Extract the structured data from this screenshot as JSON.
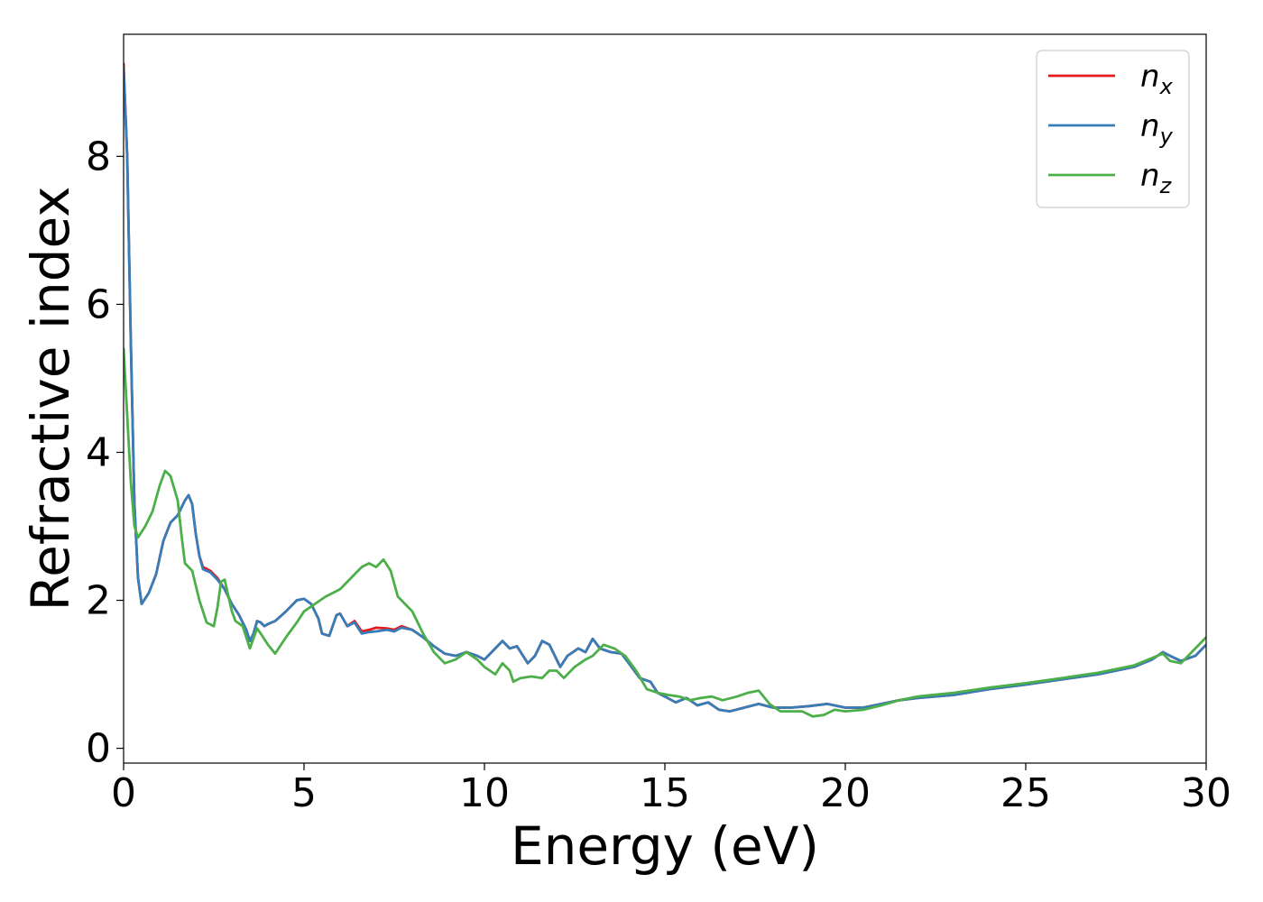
{
  "chart_data": {
    "type": "line",
    "title": "",
    "xlabel": "Energy (eV)",
    "ylabel": "Refractive index",
    "xlim": [
      0,
      30
    ],
    "ylim": [
      -0.2,
      9.65
    ],
    "xticks": [
      0,
      5,
      10,
      15,
      20,
      25,
      30
    ],
    "yticks": [
      0,
      2,
      4,
      6,
      8
    ],
    "grid": false,
    "legend_position": "top-right",
    "series": [
      {
        "name": "n",
        "subscript": "x",
        "color": "#e41a1c",
        "points": [
          [
            0,
            9.25
          ],
          [
            0.1,
            8.0
          ],
          [
            0.2,
            5.5
          ],
          [
            0.3,
            3.3
          ],
          [
            0.4,
            2.3
          ],
          [
            0.5,
            1.95
          ],
          [
            0.7,
            2.1
          ],
          [
            0.9,
            2.35
          ],
          [
            1.1,
            2.8
          ],
          [
            1.3,
            3.05
          ],
          [
            1.5,
            3.15
          ],
          [
            1.7,
            3.35
          ],
          [
            1.8,
            3.42
          ],
          [
            1.9,
            3.3
          ],
          [
            2.0,
            2.9
          ],
          [
            2.1,
            2.6
          ],
          [
            2.2,
            2.45
          ],
          [
            2.4,
            2.4
          ],
          [
            2.6,
            2.3
          ],
          [
            2.8,
            2.15
          ],
          [
            3.0,
            1.95
          ],
          [
            3.2,
            1.8
          ],
          [
            3.4,
            1.6
          ],
          [
            3.5,
            1.45
          ],
          [
            3.6,
            1.55
          ],
          [
            3.7,
            1.72
          ],
          [
            3.8,
            1.7
          ],
          [
            3.9,
            1.65
          ],
          [
            4.0,
            1.68
          ],
          [
            4.2,
            1.72
          ],
          [
            4.5,
            1.85
          ],
          [
            4.8,
            2.0
          ],
          [
            5.0,
            2.02
          ],
          [
            5.2,
            1.95
          ],
          [
            5.4,
            1.75
          ],
          [
            5.5,
            1.55
          ],
          [
            5.7,
            1.52
          ],
          [
            5.9,
            1.8
          ],
          [
            6.0,
            1.82
          ],
          [
            6.2,
            1.65
          ],
          [
            6.4,
            1.72
          ],
          [
            6.6,
            1.58
          ],
          [
            6.8,
            1.6
          ],
          [
            7.0,
            1.63
          ],
          [
            7.3,
            1.62
          ],
          [
            7.5,
            1.6
          ],
          [
            7.7,
            1.65
          ],
          [
            8.0,
            1.6
          ],
          [
            8.3,
            1.5
          ],
          [
            8.6,
            1.38
          ],
          [
            8.9,
            1.28
          ],
          [
            9.2,
            1.25
          ],
          [
            9.5,
            1.3
          ],
          [
            9.8,
            1.25
          ],
          [
            10.0,
            1.2
          ],
          [
            10.2,
            1.3
          ],
          [
            10.5,
            1.45
          ],
          [
            10.7,
            1.35
          ],
          [
            10.9,
            1.38
          ],
          [
            11.2,
            1.15
          ],
          [
            11.4,
            1.25
          ],
          [
            11.6,
            1.45
          ],
          [
            11.8,
            1.4
          ],
          [
            12.1,
            1.1
          ],
          [
            12.3,
            1.25
          ],
          [
            12.6,
            1.35
          ],
          [
            12.8,
            1.3
          ],
          [
            13.0,
            1.48
          ],
          [
            13.2,
            1.35
          ],
          [
            13.5,
            1.3
          ],
          [
            13.8,
            1.28
          ],
          [
            14.0,
            1.15
          ],
          [
            14.3,
            0.95
          ],
          [
            14.6,
            0.9
          ],
          [
            14.8,
            0.75
          ],
          [
            15.0,
            0.7
          ],
          [
            15.3,
            0.62
          ],
          [
            15.6,
            0.68
          ],
          [
            15.9,
            0.58
          ],
          [
            16.2,
            0.62
          ],
          [
            16.5,
            0.52
          ],
          [
            16.8,
            0.5
          ],
          [
            17.2,
            0.55
          ],
          [
            17.6,
            0.6
          ],
          [
            18.0,
            0.55
          ],
          [
            18.5,
            0.55
          ],
          [
            19.0,
            0.57
          ],
          [
            19.5,
            0.6
          ],
          [
            20.0,
            0.55
          ],
          [
            20.5,
            0.55
          ],
          [
            21.0,
            0.6
          ],
          [
            21.5,
            0.65
          ],
          [
            22.0,
            0.68
          ],
          [
            23.0,
            0.72
          ],
          [
            24.0,
            0.8
          ],
          [
            25.0,
            0.86
          ],
          [
            26.0,
            0.93
          ],
          [
            27.0,
            1.0
          ],
          [
            28.0,
            1.1
          ],
          [
            28.5,
            1.2
          ],
          [
            28.8,
            1.3
          ],
          [
            29.0,
            1.25
          ],
          [
            29.3,
            1.18
          ],
          [
            29.7,
            1.25
          ],
          [
            30.0,
            1.4
          ]
        ]
      },
      {
        "name": "n",
        "subscript": "y",
        "color": "#377eb8",
        "points": [
          [
            0,
            9.2
          ],
          [
            0.1,
            8.0
          ],
          [
            0.2,
            5.5
          ],
          [
            0.3,
            3.3
          ],
          [
            0.4,
            2.3
          ],
          [
            0.5,
            1.95
          ],
          [
            0.7,
            2.1
          ],
          [
            0.9,
            2.35
          ],
          [
            1.1,
            2.8
          ],
          [
            1.3,
            3.05
          ],
          [
            1.5,
            3.15
          ],
          [
            1.7,
            3.35
          ],
          [
            1.8,
            3.42
          ],
          [
            1.9,
            3.3
          ],
          [
            2.0,
            2.9
          ],
          [
            2.1,
            2.6
          ],
          [
            2.2,
            2.42
          ],
          [
            2.4,
            2.38
          ],
          [
            2.6,
            2.28
          ],
          [
            2.8,
            2.15
          ],
          [
            3.0,
            1.95
          ],
          [
            3.2,
            1.8
          ],
          [
            3.4,
            1.6
          ],
          [
            3.5,
            1.45
          ],
          [
            3.6,
            1.55
          ],
          [
            3.7,
            1.72
          ],
          [
            3.8,
            1.7
          ],
          [
            3.9,
            1.65
          ],
          [
            4.0,
            1.68
          ],
          [
            4.2,
            1.72
          ],
          [
            4.5,
            1.85
          ],
          [
            4.8,
            2.0
          ],
          [
            5.0,
            2.02
          ],
          [
            5.2,
            1.95
          ],
          [
            5.4,
            1.75
          ],
          [
            5.5,
            1.55
          ],
          [
            5.7,
            1.52
          ],
          [
            5.9,
            1.8
          ],
          [
            6.0,
            1.82
          ],
          [
            6.2,
            1.65
          ],
          [
            6.4,
            1.7
          ],
          [
            6.6,
            1.55
          ],
          [
            6.8,
            1.57
          ],
          [
            7.0,
            1.58
          ],
          [
            7.3,
            1.6
          ],
          [
            7.5,
            1.58
          ],
          [
            7.7,
            1.63
          ],
          [
            8.0,
            1.6
          ],
          [
            8.3,
            1.5
          ],
          [
            8.6,
            1.38
          ],
          [
            8.9,
            1.28
          ],
          [
            9.2,
            1.25
          ],
          [
            9.5,
            1.3
          ],
          [
            9.8,
            1.25
          ],
          [
            10.0,
            1.2
          ],
          [
            10.2,
            1.3
          ],
          [
            10.5,
            1.45
          ],
          [
            10.7,
            1.35
          ],
          [
            10.9,
            1.38
          ],
          [
            11.2,
            1.15
          ],
          [
            11.4,
            1.25
          ],
          [
            11.6,
            1.45
          ],
          [
            11.8,
            1.4
          ],
          [
            12.1,
            1.1
          ],
          [
            12.3,
            1.25
          ],
          [
            12.6,
            1.35
          ],
          [
            12.8,
            1.3
          ],
          [
            13.0,
            1.48
          ],
          [
            13.2,
            1.35
          ],
          [
            13.5,
            1.3
          ],
          [
            13.8,
            1.28
          ],
          [
            14.0,
            1.15
          ],
          [
            14.3,
            0.95
          ],
          [
            14.6,
            0.9
          ],
          [
            14.8,
            0.75
          ],
          [
            15.0,
            0.7
          ],
          [
            15.3,
            0.62
          ],
          [
            15.6,
            0.68
          ],
          [
            15.9,
            0.58
          ],
          [
            16.2,
            0.62
          ],
          [
            16.5,
            0.52
          ],
          [
            16.8,
            0.5
          ],
          [
            17.2,
            0.55
          ],
          [
            17.6,
            0.6
          ],
          [
            18.0,
            0.55
          ],
          [
            18.5,
            0.55
          ],
          [
            19.0,
            0.57
          ],
          [
            19.5,
            0.6
          ],
          [
            20.0,
            0.55
          ],
          [
            20.5,
            0.55
          ],
          [
            21.0,
            0.6
          ],
          [
            21.5,
            0.65
          ],
          [
            22.0,
            0.68
          ],
          [
            23.0,
            0.72
          ],
          [
            24.0,
            0.8
          ],
          [
            25.0,
            0.86
          ],
          [
            26.0,
            0.93
          ],
          [
            27.0,
            1.0
          ],
          [
            28.0,
            1.1
          ],
          [
            28.5,
            1.2
          ],
          [
            28.8,
            1.3
          ],
          [
            29.0,
            1.25
          ],
          [
            29.3,
            1.18
          ],
          [
            29.7,
            1.25
          ],
          [
            30.0,
            1.4
          ]
        ]
      },
      {
        "name": "n",
        "subscript": "z",
        "color": "#4daf4a",
        "points": [
          [
            0,
            5.4
          ],
          [
            0.1,
            4.5
          ],
          [
            0.2,
            3.6
          ],
          [
            0.3,
            3.0
          ],
          [
            0.4,
            2.85
          ],
          [
            0.6,
            3.0
          ],
          [
            0.8,
            3.2
          ],
          [
            1.0,
            3.55
          ],
          [
            1.15,
            3.75
          ],
          [
            1.3,
            3.68
          ],
          [
            1.5,
            3.35
          ],
          [
            1.6,
            2.9
          ],
          [
            1.7,
            2.5
          ],
          [
            1.9,
            2.4
          ],
          [
            2.1,
            2.0
          ],
          [
            2.3,
            1.7
          ],
          [
            2.5,
            1.65
          ],
          [
            2.6,
            1.9
          ],
          [
            2.7,
            2.25
          ],
          [
            2.8,
            2.28
          ],
          [
            3.0,
            1.85
          ],
          [
            3.1,
            1.72
          ],
          [
            3.3,
            1.65
          ],
          [
            3.5,
            1.35
          ],
          [
            3.7,
            1.62
          ],
          [
            3.8,
            1.55
          ],
          [
            4.0,
            1.4
          ],
          [
            4.2,
            1.28
          ],
          [
            4.5,
            1.5
          ],
          [
            4.8,
            1.7
          ],
          [
            5.0,
            1.85
          ],
          [
            5.3,
            1.95
          ],
          [
            5.6,
            2.05
          ],
          [
            6.0,
            2.15
          ],
          [
            6.3,
            2.3
          ],
          [
            6.6,
            2.45
          ],
          [
            6.8,
            2.5
          ],
          [
            7.0,
            2.45
          ],
          [
            7.2,
            2.55
          ],
          [
            7.4,
            2.4
          ],
          [
            7.6,
            2.05
          ],
          [
            7.8,
            1.95
          ],
          [
            8.0,
            1.85
          ],
          [
            8.3,
            1.55
          ],
          [
            8.6,
            1.3
          ],
          [
            8.9,
            1.15
          ],
          [
            9.2,
            1.2
          ],
          [
            9.5,
            1.3
          ],
          [
            9.8,
            1.2
          ],
          [
            10.0,
            1.1
          ],
          [
            10.3,
            1.0
          ],
          [
            10.5,
            1.15
          ],
          [
            10.7,
            1.05
          ],
          [
            10.8,
            0.9
          ],
          [
            11.0,
            0.95
          ],
          [
            11.3,
            0.97
          ],
          [
            11.6,
            0.95
          ],
          [
            11.8,
            1.05
          ],
          [
            12.0,
            1.05
          ],
          [
            12.2,
            0.95
          ],
          [
            12.5,
            1.1
          ],
          [
            12.8,
            1.2
          ],
          [
            13.0,
            1.25
          ],
          [
            13.3,
            1.4
          ],
          [
            13.6,
            1.35
          ],
          [
            13.9,
            1.25
          ],
          [
            14.2,
            1.05
          ],
          [
            14.5,
            0.8
          ],
          [
            14.8,
            0.75
          ],
          [
            15.1,
            0.72
          ],
          [
            15.4,
            0.7
          ],
          [
            15.7,
            0.65
          ],
          [
            16.0,
            0.68
          ],
          [
            16.3,
            0.7
          ],
          [
            16.6,
            0.65
          ],
          [
            17.0,
            0.7
          ],
          [
            17.3,
            0.75
          ],
          [
            17.6,
            0.78
          ],
          [
            17.9,
            0.6
          ],
          [
            18.2,
            0.5
          ],
          [
            18.5,
            0.5
          ],
          [
            18.8,
            0.5
          ],
          [
            19.1,
            0.43
          ],
          [
            19.4,
            0.45
          ],
          [
            19.7,
            0.52
          ],
          [
            20.0,
            0.5
          ],
          [
            20.5,
            0.52
          ],
          [
            21.0,
            0.58
          ],
          [
            21.5,
            0.65
          ],
          [
            22.0,
            0.7
          ],
          [
            23.0,
            0.75
          ],
          [
            24.0,
            0.82
          ],
          [
            25.0,
            0.88
          ],
          [
            26.0,
            0.95
          ],
          [
            27.0,
            1.02
          ],
          [
            28.0,
            1.12
          ],
          [
            28.5,
            1.22
          ],
          [
            28.8,
            1.28
          ],
          [
            29.0,
            1.18
          ],
          [
            29.3,
            1.15
          ],
          [
            29.7,
            1.35
          ],
          [
            30.0,
            1.5
          ]
        ]
      }
    ]
  }
}
